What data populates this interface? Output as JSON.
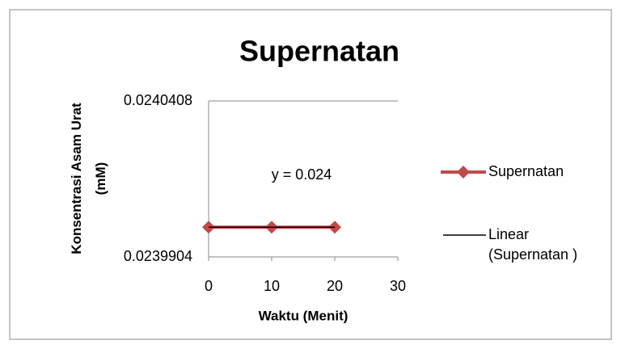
{
  "chart_data": {
    "type": "line",
    "title": "Supernatan",
    "x_label": "Waktu (Menit)",
    "y_label": "Konsentrasi Asam Urat (mM)",
    "annotation": "y = 0.024",
    "x": [
      0,
      10,
      20
    ],
    "series": [
      {
        "name": "Supernatan",
        "color": "#be4b48",
        "values": [
          0.024,
          0.024,
          0.024
        ]
      }
    ],
    "trendline": {
      "name": "Linear (Supernatan )",
      "color": "#000000",
      "values": [
        0.024,
        0.024,
        0.024
      ]
    },
    "xlim": [
      0,
      30
    ],
    "xticks": [
      0,
      10,
      20,
      30
    ],
    "ylim": [
      0.0239904,
      0.0240408
    ],
    "yticks": [
      0.0239904,
      0.0240408
    ],
    "grid": true,
    "legend": "right"
  }
}
